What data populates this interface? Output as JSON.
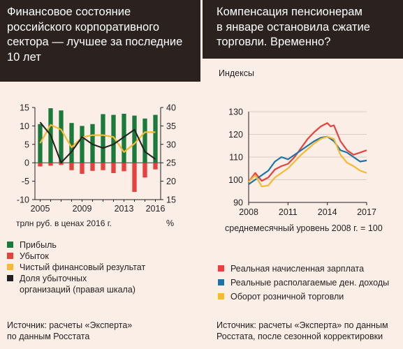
{
  "left": {
    "title_lines": [
      "Финансовое состояние",
      "российского корпоративного",
      "сектора — лучшее за последние",
      "10 лет"
    ],
    "unit_left": "трлн руб. в ценах 2016 г.",
    "unit_right": "%",
    "legend": [
      {
        "label": "Прибыль",
        "color": "#1a7a3c"
      },
      {
        "label": "Убыток",
        "color": "#e8403d"
      },
      {
        "label": "Чистый финансовый результат",
        "color": "#f6b932"
      },
      {
        "label": "Доля убыточных",
        "label2": "организаций (правая шкала)",
        "color": "#231f20"
      }
    ],
    "source_lines": [
      "Источник: расчеты «Эксперта»",
      "по данным Росстата"
    ]
  },
  "right": {
    "title_lines": [
      "Компенсация пенсионерам",
      "в январе остановила сжатие",
      "торговли. Временно?"
    ],
    "y_caption": "Индексы",
    "note": "среднемесячный уровень 2008 г. = 100",
    "legend": [
      {
        "label": "Реальная начисленная зарплата",
        "color": "#e8403d"
      },
      {
        "label": "Реальные располагаемые ден. доходы",
        "color": "#1a74a8"
      },
      {
        "label": "Оборот розничной торговли",
        "color": "#f6b932"
      }
    ],
    "source_lines": [
      "Источник: расчеты «Эксперта» по данным",
      "Росстата, после сезонной корректировки"
    ]
  },
  "chart_data": [
    {
      "type": "bar",
      "categories": [
        "2005",
        "2006",
        "2007",
        "2008",
        "2009",
        "2010",
        "2011",
        "2012",
        "2013",
        "2014",
        "2015",
        "2016"
      ],
      "x_tick_labels": [
        "2005",
        "2009",
        "2013",
        "2016"
      ],
      "ylim": [
        -10,
        15
      ],
      "y_ticks": [
        -10,
        -5,
        0,
        5,
        10,
        15
      ],
      "y2lim": [
        15,
        40
      ],
      "y2_ticks": [
        15,
        20,
        25,
        30,
        35,
        40
      ],
      "xlabel": "трлн руб. в ценах 2016 г.",
      "ylabel2": "%",
      "series": [
        {
          "name": "Прибыль",
          "kind": "bar",
          "axis": "left",
          "color": "#1a7a3c",
          "values": [
            10.5,
            14.8,
            14.2,
            10.8,
            10.0,
            10.5,
            13.2,
            13.0,
            13.3,
            12.8,
            12.0,
            13.0
          ]
        },
        {
          "name": "Убыток",
          "kind": "bar",
          "axis": "left",
          "color": "#e8403d",
          "values": [
            -1.0,
            -0.8,
            -0.6,
            -2.0,
            -3.0,
            -2.2,
            -2.0,
            -2.8,
            -2.3,
            -7.9,
            -4.0,
            -1.8
          ]
        },
        {
          "name": "Чистый финансовый результат",
          "kind": "line",
          "axis": "left",
          "color": "#f6b932",
          "values": [
            5.3,
            10.3,
            9.0,
            4.2,
            6.9,
            7.5,
            7.5,
            7.0,
            2.9,
            5.2,
            8.3,
            8.3
          ]
        },
        {
          "name": "Доля убыточных организаций (правая шкала)",
          "kind": "line",
          "axis": "right",
          "color": "#231f20",
          "values": [
            36.0,
            32.5,
            25.0,
            28.0,
            32.0,
            30.0,
            29.0,
            30.0,
            32.0,
            34.0,
            28.0,
            26.0
          ]
        }
      ]
    },
    {
      "type": "line",
      "x_range": [
        2008,
        2017
      ],
      "x_tick_labels": [
        "2008",
        "2011",
        "2014",
        "2017"
      ],
      "ylim": [
        90,
        130
      ],
      "y_ticks": [
        90,
        100,
        110,
        120,
        130
      ],
      "ylabel": "Индексы",
      "annotation": "среднемесячный уровень 2008 г. = 100",
      "series": [
        {
          "name": "Реальная начисленная зарплата",
          "color": "#e8403d",
          "x": [
            2008.0,
            2008.5,
            2009.0,
            2009.5,
            2010.0,
            2010.5,
            2011.0,
            2011.5,
            2012.0,
            2012.5,
            2013.0,
            2013.5,
            2014.0,
            2014.25,
            2014.5,
            2015.0,
            2015.5,
            2016.0,
            2016.5,
            2017.0
          ],
          "y": [
            99.0,
            103.0,
            99.5,
            101.0,
            104.5,
            106.0,
            107.0,
            110.0,
            114.0,
            118.0,
            121.0,
            123.5,
            125.0,
            123.5,
            124.0,
            117.0,
            113.0,
            111.0,
            112.0,
            113.0
          ]
        },
        {
          "name": "Реальные располагаемые ден. доходы",
          "color": "#1a74a8",
          "x": [
            2008.0,
            2008.5,
            2009.0,
            2009.5,
            2010.0,
            2010.5,
            2011.0,
            2011.5,
            2012.0,
            2012.5,
            2013.0,
            2013.5,
            2014.0,
            2014.5,
            2015.0,
            2015.5,
            2016.0,
            2016.5,
            2017.0
          ],
          "y": [
            98.0,
            100.0,
            102.0,
            104.0,
            108.0,
            110.0,
            109.0,
            111.0,
            113.0,
            115.0,
            117.0,
            118.5,
            119.0,
            117.0,
            113.0,
            112.0,
            110.0,
            108.0,
            108.5
          ]
        },
        {
          "name": "Оборот розничной торговли",
          "color": "#f6b932",
          "x": [
            2008.0,
            2008.5,
            2009.0,
            2009.5,
            2010.0,
            2010.5,
            2011.0,
            2011.5,
            2012.0,
            2012.5,
            2013.0,
            2013.5,
            2014.0,
            2014.5,
            2015.0,
            2015.5,
            2016.0,
            2016.5,
            2017.0
          ],
          "y": [
            99.0,
            102.0,
            97.0,
            97.5,
            101.0,
            103.0,
            105.0,
            108.0,
            111.0,
            113.5,
            116.0,
            118.0,
            119.0,
            118.0,
            111.0,
            107.5,
            106.0,
            104.0,
            103.0
          ]
        }
      ]
    }
  ]
}
